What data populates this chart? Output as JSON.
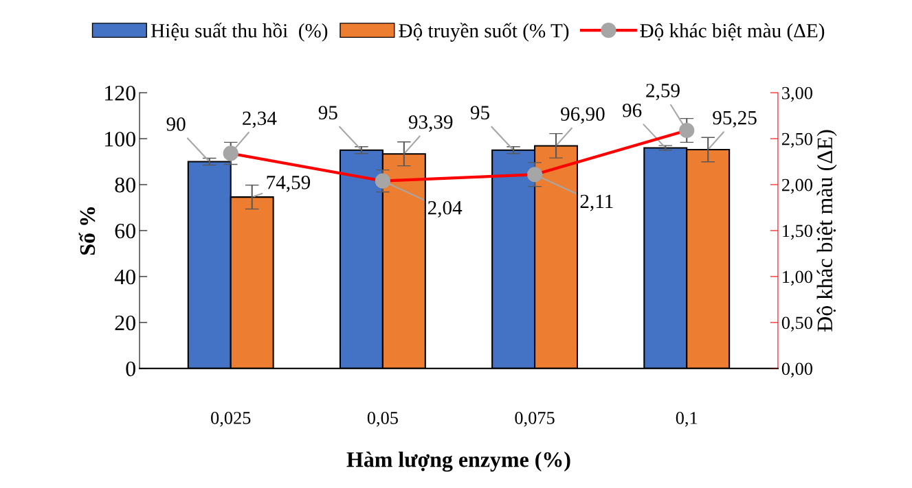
{
  "chart_data": {
    "type": "bar",
    "xlabel": "Hàm lượng enzyme (%)",
    "ylabel": "Số %",
    "y2label": "Độ khác biệt màu (ΔE)",
    "categories": [
      "0,025",
      "0,05",
      "0,075",
      "0,1"
    ],
    "series": [
      {
        "name": "Hiệu suất thu hồi  (%)",
        "color": "#4472c4",
        "values": [
          90,
          95,
          95,
          96
        ],
        "errors": [
          1.5,
          1.5,
          1.5,
          1
        ],
        "value_labels": [
          "90",
          "95",
          "95",
          "96"
        ]
      },
      {
        "name": "Độ truyền suốt (% T)",
        "color": "#ed7d31",
        "values": [
          74.59,
          93.39,
          96.9,
          95.25
        ],
        "errors": [
          5.2,
          5.2,
          5.3,
          5.3
        ],
        "value_labels": [
          "74,59",
          "93,39",
          "96,90",
          "95,25"
        ]
      },
      {
        "name": "Độ khác biệt màu (ΔE)",
        "type": "line",
        "axis": "y2",
        "color": "#ff0000",
        "marker": "circle",
        "values": [
          2.34,
          2.04,
          2.11,
          2.59
        ],
        "errors": [
          0.12,
          0.12,
          0.13,
          0.13
        ],
        "value_labels": [
          "2,34",
          "2,04",
          "2,11",
          "2,59"
        ]
      }
    ],
    "ylim": [
      0,
      120
    ],
    "yticks": [
      0,
      20,
      40,
      60,
      80,
      100,
      120
    ],
    "y2lim": [
      0,
      3
    ],
    "y2ticks": [
      {
        "value": 0,
        "label": "0,00"
      },
      {
        "value": 0.5,
        "label": "0,50"
      },
      {
        "value": 1,
        "label": "1,00"
      },
      {
        "value": 1.5,
        "label": "1,50"
      },
      {
        "value": 2,
        "label": "2,00"
      },
      {
        "value": 2.5,
        "label": "2,50"
      },
      {
        "value": 3,
        "label": "3,00"
      }
    ],
    "legend": "top",
    "grid": false
  }
}
